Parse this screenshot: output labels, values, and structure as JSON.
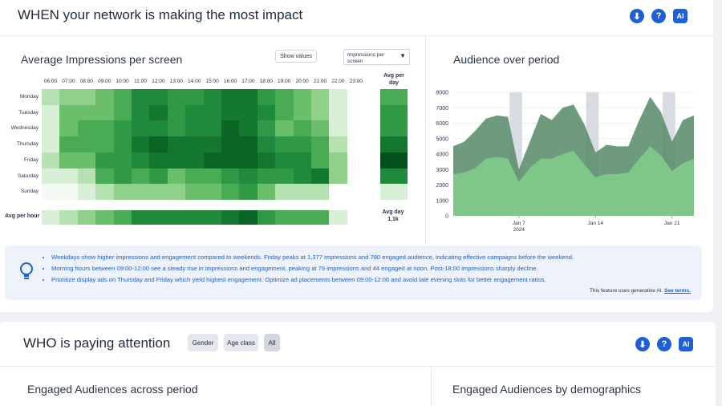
{
  "when": {
    "title": "WHEN your network is making the most impact",
    "heatmap": {
      "title": "Average Impressions per screen",
      "show_values_label": "Show values",
      "metric_select": "Impressions per screen",
      "hours": [
        "06:00",
        "07:00",
        "08:00",
        "09:00",
        "10:00",
        "11:00",
        "12:00",
        "13:00",
        "14:00",
        "15:00",
        "16:00",
        "17:00",
        "18:00",
        "19:00",
        "20:00",
        "21:00",
        "22:00",
        "23:00"
      ],
      "days": [
        "Monday",
        "Tuesday",
        "Wednesday",
        "Thursday",
        "Friday",
        "Saturday",
        "Sunday"
      ],
      "avg_per_day_label": "Avg per day",
      "avg_per_hour_label": "Avg per hour",
      "avg_day_label": "Avg day",
      "avg_day_value": "1.1k",
      "levels": [
        [
          0.18,
          0.3,
          0.3,
          0.4,
          0.45,
          0.7,
          0.65,
          0.55,
          0.62,
          0.7,
          0.8,
          0.82,
          0.62,
          0.45,
          0.42,
          0.32,
          0.12,
          0.0
        ],
        [
          0.12,
          0.35,
          0.4,
          0.4,
          0.5,
          0.7,
          0.75,
          0.62,
          0.68,
          0.7,
          0.8,
          0.8,
          0.65,
          0.5,
          0.4,
          0.28,
          0.1,
          0.0
        ],
        [
          0.12,
          0.4,
          0.48,
          0.48,
          0.6,
          0.72,
          0.72,
          0.55,
          0.65,
          0.72,
          0.85,
          0.78,
          0.58,
          0.4,
          0.45,
          0.35,
          0.12,
          0.0
        ],
        [
          0.12,
          0.45,
          0.45,
          0.45,
          0.55,
          0.75,
          0.9,
          0.75,
          0.8,
          0.78,
          0.92,
          0.92,
          0.7,
          0.55,
          0.55,
          0.45,
          0.15,
          0.0
        ],
        [
          0.15,
          0.38,
          0.38,
          0.55,
          0.6,
          0.72,
          0.8,
          0.82,
          0.78,
          0.85,
          0.88,
          0.9,
          0.78,
          0.72,
          0.68,
          0.52,
          0.25,
          0.0
        ],
        [
          0.05,
          0.12,
          0.2,
          0.45,
          0.55,
          0.45,
          0.55,
          0.42,
          0.52,
          0.48,
          0.58,
          0.72,
          0.58,
          0.58,
          0.66,
          0.8,
          0.28,
          0.0
        ],
        [
          0.02,
          0.04,
          0.06,
          0.18,
          0.25,
          0.28,
          0.28,
          0.3,
          0.35,
          0.4,
          0.5,
          0.62,
          0.35,
          0.22,
          0.2,
          0.15,
          0.0,
          0.0
        ]
      ],
      "day_levels": [
        0.5,
        0.58,
        0.55,
        0.8,
        0.95,
        0.65,
        0.05
      ],
      "hour_levels": [
        0.08,
        0.2,
        0.28,
        0.4,
        0.52,
        0.68,
        0.7,
        0.65,
        0.68,
        0.7,
        0.82,
        0.88,
        0.62,
        0.5,
        0.5,
        0.52,
        0.12,
        0.0
      ]
    },
    "audience": {
      "title": "Audience over period",
      "y_ticks": [
        "8000",
        "7000",
        "6000",
        "5000",
        "4000",
        "3000",
        "2000",
        "1000",
        "0"
      ],
      "x_labels": [
        "Jan 7\n2024",
        "Jan 14",
        "Jan 21"
      ]
    },
    "insights": [
      "Weekdays show higher impressions and engagement compared to weekends. Friday peaks at 1,377 impressions and 780 engaged audience, indicating effective campaigns before the weekend.",
      "Morning hours between 09:00-12:00 see a steady rise in impressions and engagement, peaking at 79 impressions and 44 engaged at noon. Post-18:00 impressions sharply decline.",
      "Prioritize display ads on Thursday and Friday which yield highest engagement. Optimize ad placements between 09:00-12:00 and avoid late evening slots for better engagement ratios."
    ],
    "disclaimer": "This feature uses generative AI.",
    "see_terms": "See terms."
  },
  "who": {
    "title": "WHO is paying attention",
    "filters": [
      "Gender",
      "Age class",
      "All"
    ],
    "left_title": "Engaged Audiences across period",
    "right_title": "Engaged Audiences by demographics"
  },
  "icons": {
    "download": "download-icon",
    "help": "help-icon",
    "ai": "ai-chip-icon",
    "bulb": "lightbulb-icon"
  },
  "colors": {
    "accent": "#1f5fd6",
    "heat_low": "#eaf6ea",
    "heat_high": "#00401a",
    "area_dark": "#5e8f70",
    "area_light": "#7fc98a",
    "weekend_band": "#d8dbe2"
  },
  "chart_data": {
    "type": "area",
    "title": "Audience over period",
    "ylim": [
      0,
      8000
    ],
    "x": [
      "Jan 1",
      "Jan 2",
      "Jan 3",
      "Jan 4",
      "Jan 5",
      "Jan 6",
      "Jan 7",
      "Jan 8",
      "Jan 9",
      "Jan 10",
      "Jan 11",
      "Jan 12",
      "Jan 13",
      "Jan 14",
      "Jan 15",
      "Jan 16",
      "Jan 17",
      "Jan 18",
      "Jan 19",
      "Jan 20",
      "Jan 21",
      "Jan 22",
      "Jan 23"
    ],
    "series": [
      {
        "values": [
          4500,
          4800,
          5500,
          6300,
          6500,
          6400,
          3000,
          4800,
          6600,
          6200,
          7000,
          7200,
          5900,
          4100,
          4600,
          4500,
          4500,
          6200,
          7700,
          6700,
          4800,
          6200,
          6500
        ]
      },
      {
        "values": [
          2700,
          2800,
          3100,
          3700,
          3800,
          3700,
          2200,
          3100,
          3700,
          3700,
          4000,
          4200,
          3300,
          2500,
          2700,
          2700,
          2800,
          3700,
          4500,
          3900,
          2900,
          3400,
          3700
        ]
      }
    ],
    "shaded_weekends": [
      [
        "Jan 6",
        "Jan 7"
      ],
      [
        "Jan 13",
        "Jan 14"
      ],
      [
        "Jan 20",
        "Jan 21"
      ]
    ]
  }
}
